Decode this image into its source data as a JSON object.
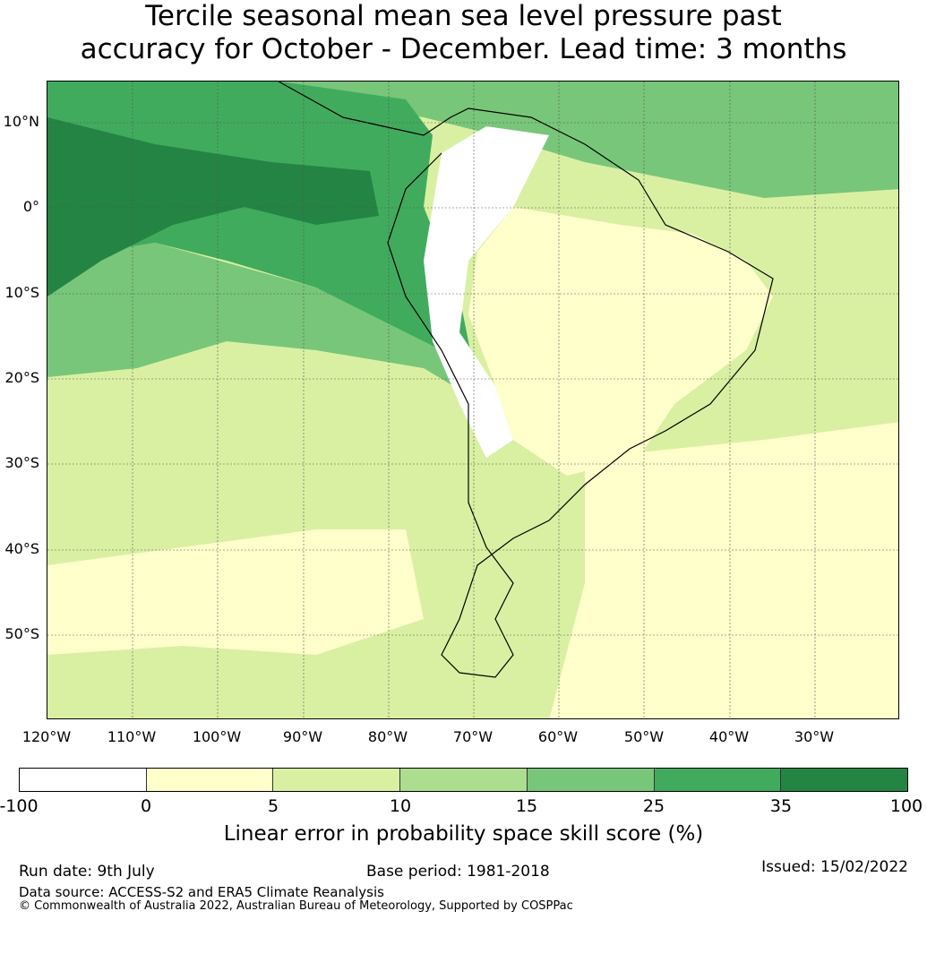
{
  "title": {
    "line1": "Tercile seasonal mean sea level pressure past",
    "line2": "accuracy for October - December. Lead time: 3 months"
  },
  "map": {
    "lat_labels": [
      "10°N",
      "0°",
      "10°S",
      "20°S",
      "30°S",
      "40°S",
      "50°S"
    ],
    "lon_labels": [
      "120°W",
      "110°W",
      "100°W",
      "90°W",
      "80°W",
      "70°W",
      "60°W",
      "50°W",
      "40°W",
      "30°W"
    ],
    "lat_range": [
      -60,
      15
    ],
    "lon_range": [
      -120,
      -20
    ],
    "grid": true
  },
  "colorbar": {
    "ticks": [
      "-100",
      "0",
      "5",
      "10",
      "15",
      "25",
      "35",
      "100"
    ],
    "colors": [
      "#ffffff",
      "#ffffcc",
      "#d9f0a3",
      "#addd8e",
      "#78c679",
      "#41ab5d",
      "#238443"
    ],
    "label": "Linear error in probability space skill score (%)"
  },
  "footer": {
    "run_date": "Run date: 9th July",
    "base_period": "Base period: 1981-2018",
    "issued": "Issued: 15/02/2022",
    "data_source": "Data source: ACCESS-S2 and ERA5 Climate Reanalysis",
    "copyright": "© Commonwealth of Australia 2022, Australian Bureau of Meteorology, Supported by COSPPac"
  }
}
